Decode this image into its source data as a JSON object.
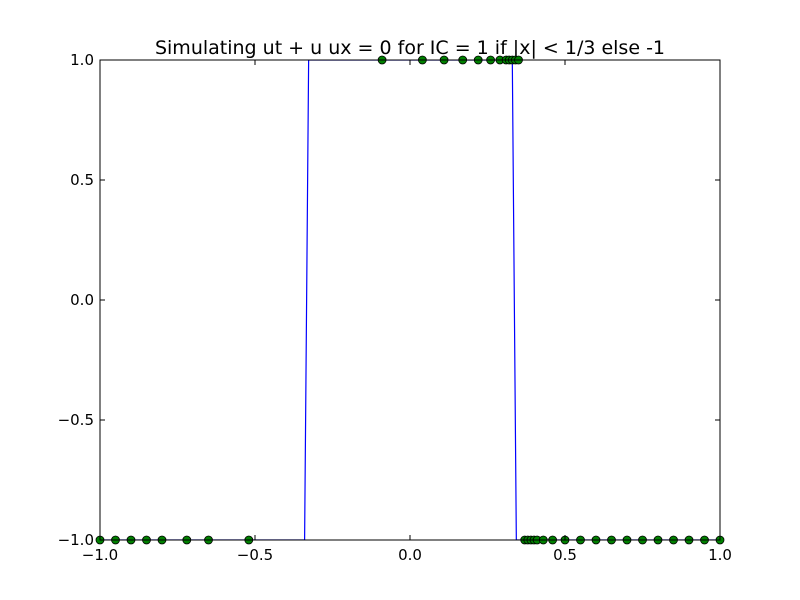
{
  "chart_data": {
    "type": "line",
    "title": "Simulating ut + u ux = 0 for IC = 1 if |x| < 1/3 else -1",
    "xlabel": "",
    "ylabel": "",
    "xlim": [
      -1.0,
      1.0
    ],
    "ylim": [
      -1.0,
      1.0
    ],
    "xticks": [
      -1.0,
      -0.5,
      0.0,
      0.5,
      1.0
    ],
    "xtick_labels": [
      "−1.0",
      "−0.5",
      "0.0",
      "0.5",
      "1.0"
    ],
    "yticks": [
      -1.0,
      -0.5,
      0.0,
      0.5,
      1.0
    ],
    "ytick_labels": [
      "−1.0",
      "−0.5",
      "0.0",
      "0.5",
      "1.0"
    ],
    "grid": false,
    "series": [
      {
        "style": "line",
        "color": "#0000ff",
        "x": [
          -1.0,
          -0.34,
          -0.327,
          0.33,
          0.343,
          1.0
        ],
        "y": [
          -1.0,
          -1.0,
          1.0,
          1.0,
          -1.0,
          -1.0
        ]
      },
      {
        "style": "markers",
        "color": "#008000",
        "x": [
          -1.0,
          -0.95,
          -0.9,
          -0.85,
          -0.8,
          -0.72,
          -0.65,
          -0.52,
          -0.09,
          0.04,
          0.11,
          0.17,
          0.22,
          0.26,
          0.29,
          0.31,
          0.32,
          0.33,
          0.34,
          0.35,
          0.37,
          0.38,
          0.39,
          0.4,
          0.41,
          0.43,
          0.46,
          0.5,
          0.55,
          0.6,
          0.65,
          0.7,
          0.75,
          0.8,
          0.85,
          0.9,
          0.95,
          1.0
        ],
        "y": [
          -1,
          -1,
          -1,
          -1,
          -1,
          -1,
          -1,
          -1,
          1,
          1,
          1,
          1,
          1,
          1,
          1,
          1,
          1,
          1,
          1,
          1,
          -1,
          -1,
          -1,
          -1,
          -1,
          -1,
          -1,
          -1,
          -1,
          -1,
          -1,
          -1,
          -1,
          -1,
          -1,
          -1,
          -1,
          -1
        ]
      }
    ]
  }
}
